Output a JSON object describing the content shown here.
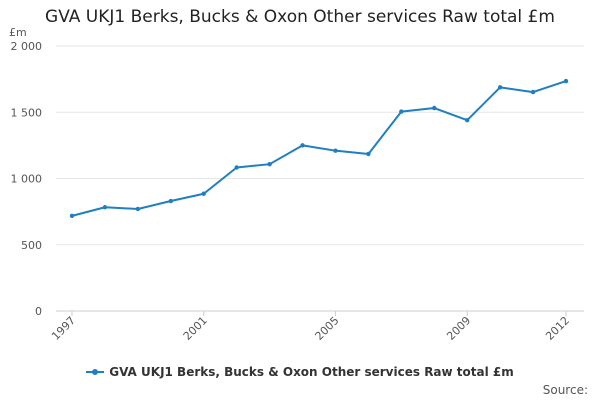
{
  "chart_data": {
    "type": "line",
    "title": "GVA UKJ1 Berks, Bucks & Oxon Other services Raw total £m",
    "unit_label": "£m",
    "x": [
      1997,
      1998,
      1999,
      2000,
      2001,
      2002,
      2003,
      2004,
      2005,
      2006,
      2007,
      2008,
      2009,
      2010,
      2011,
      2012
    ],
    "x_tick_labels": [
      "1997",
      "2001",
      "2005",
      "2009",
      "2012"
    ],
    "series": [
      {
        "name": "GVA UKJ1 Berks, Bucks & Oxon Other services Raw total £m",
        "values": [
          718,
          783,
          770,
          830,
          885,
          1083,
          1108,
          1250,
          1210,
          1185,
          1505,
          1532,
          1440,
          1688,
          1652,
          1735
        ]
      }
    ],
    "ylim": [
      0,
      2000
    ],
    "y_ticks": [
      0,
      500,
      1000,
      1500,
      2000
    ],
    "y_tick_labels": [
      "0",
      "500",
      "1 000",
      "1 500",
      "2 000"
    ],
    "grid": true,
    "legend_position": "bottom"
  },
  "source_label": "Source:",
  "colors": {
    "series": "#1f7fbf",
    "grid": "#e6e6e6",
    "axis": "#cccccc"
  }
}
